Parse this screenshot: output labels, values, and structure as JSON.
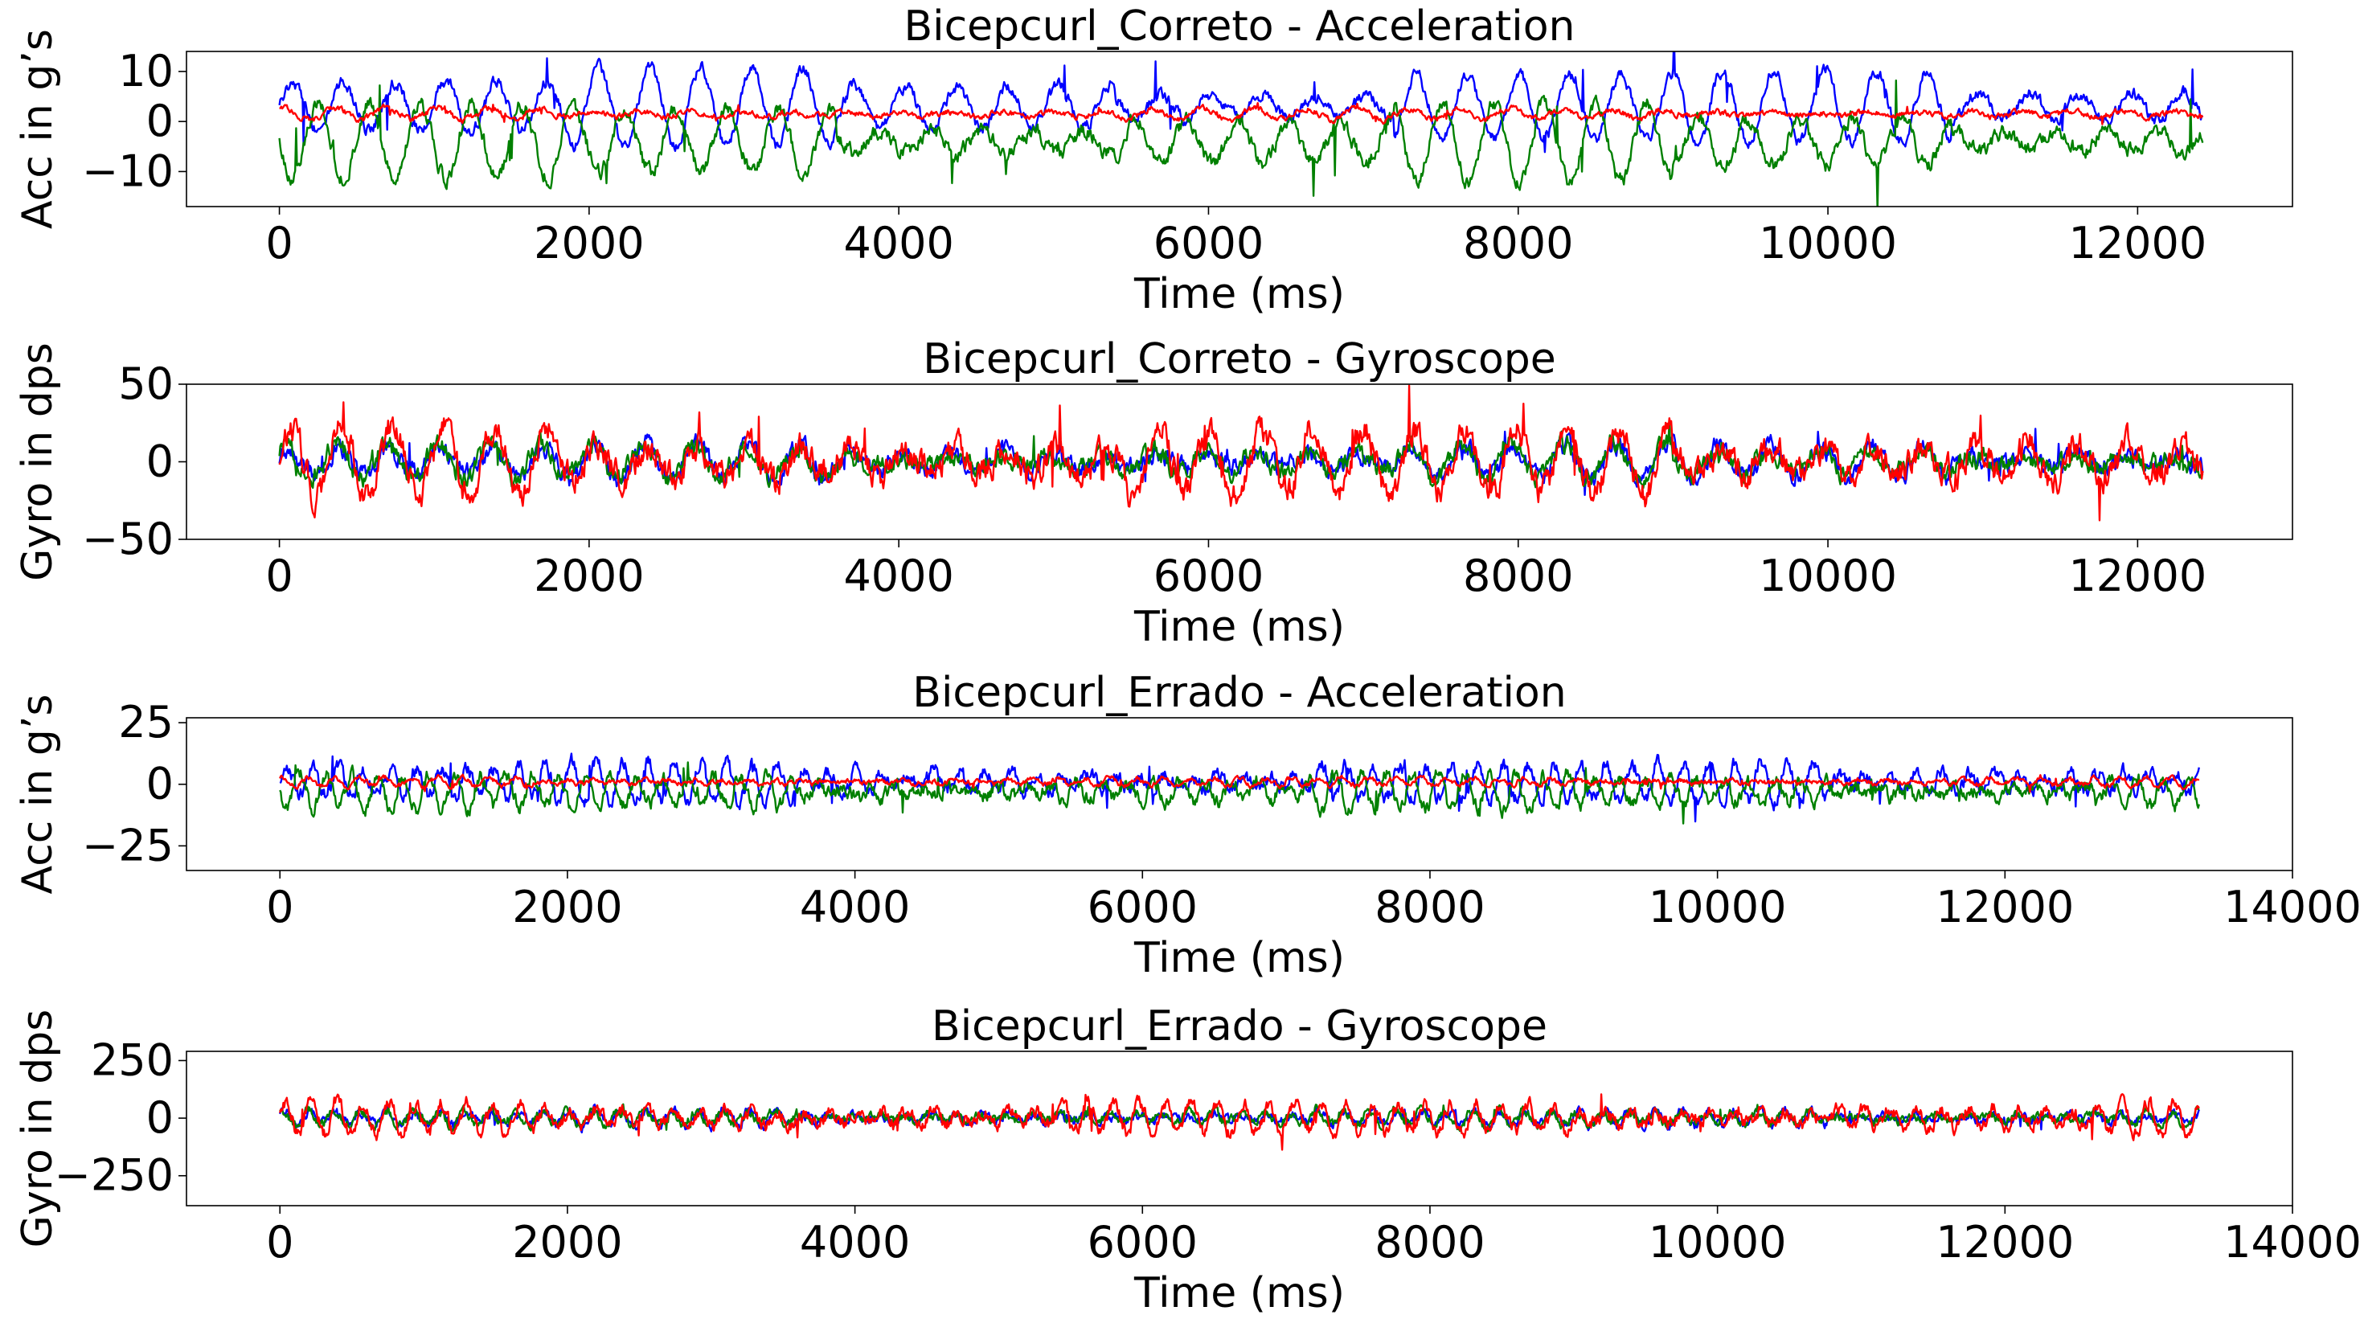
{
  "chart_data": [
    {
      "type": "line",
      "title": "Bicepcurl_Correto - Acceleration",
      "xlabel": "Time (ms)",
      "ylabel": "Acc in g’s",
      "xlim": [
        -600,
        13000
      ],
      "ylim": [
        -17,
        14
      ],
      "xticks": [
        0,
        2000,
        4000,
        6000,
        8000,
        10000,
        12000
      ],
      "yticks": [
        -10,
        0,
        10
      ],
      "ytick_labels": [
        "−10",
        "0",
        "10"
      ],
      "grid": false,
      "series": [
        {
          "color": "#0000ff",
          "x_end": 12420,
          "mean": 3,
          "amp": 6.5,
          "period": 330,
          "noise": 1.2,
          "phase": 0.0
        },
        {
          "color": "#008000",
          "x_end": 12420,
          "mean": -4,
          "amp": 6.5,
          "period": 330,
          "noise": 1.5,
          "phase": 3.1
        },
        {
          "color": "#ff0000",
          "x_end": 12420,
          "mean": 1.5,
          "amp": 1.0,
          "period": 330,
          "noise": 0.6,
          "phase": 1.0
        }
      ]
    },
    {
      "type": "line",
      "title": "Bicepcurl_Correto - Gyroscope",
      "xlabel": "Time (ms)",
      "ylabel": "Gyro in dps",
      "xlim": [
        -600,
        13000
      ],
      "ylim": [
        -50,
        50
      ],
      "xticks": [
        0,
        2000,
        4000,
        6000,
        8000,
        10000,
        12000
      ],
      "yticks": [
        -50,
        0,
        50
      ],
      "ytick_labels": [
        "−50",
        "0",
        "50"
      ],
      "grid": false,
      "series": [
        {
          "color": "#0000ff",
          "x_end": 12420,
          "mean": 0,
          "amp": 10,
          "period": 330,
          "noise": 6,
          "phase": 0.5
        },
        {
          "color": "#008000",
          "x_end": 12420,
          "mean": 0,
          "amp": 10,
          "period": 330,
          "noise": 6,
          "phase": 0.8
        },
        {
          "color": "#ff0000",
          "x_end": 12420,
          "mean": 0,
          "amp": 20,
          "period": 330,
          "noise": 9,
          "phase": 0.2
        }
      ]
    },
    {
      "type": "line",
      "title": "Bicepcurl_Errado - Acceleration",
      "xlabel": "Time (ms)",
      "ylabel": "Acc in g’s",
      "xlim": [
        -650,
        14000
      ],
      "ylim": [
        -35,
        27
      ],
      "xticks": [
        0,
        2000,
        4000,
        6000,
        8000,
        10000,
        12000,
        14000
      ],
      "yticks": [
        -25,
        0,
        25
      ],
      "ytick_labels": [
        "−25",
        "0",
        "25"
      ],
      "grid": false,
      "series": [
        {
          "color": "#0000ff",
          "x_end": 13350,
          "mean": 1,
          "amp": 7,
          "period": 180,
          "noise": 3,
          "phase": 0.0
        },
        {
          "color": "#008000",
          "x_end": 13350,
          "mean": -3,
          "amp": 6,
          "period": 180,
          "noise": 3,
          "phase": 3.0
        },
        {
          "color": "#ff0000",
          "x_end": 13350,
          "mean": 1,
          "amp": 1.5,
          "period": 180,
          "noise": 1,
          "phase": 1.0
        }
      ]
    },
    {
      "type": "line",
      "title": "Bicepcurl_Errado - Gyroscope",
      "xlabel": "Time (ms)",
      "ylabel": "Gyro in dps",
      "xlim": [
        -650,
        14000
      ],
      "ylim": [
        -380,
        290
      ],
      "xticks": [
        0,
        2000,
        4000,
        6000,
        8000,
        10000,
        12000,
        14000
      ],
      "yticks": [
        -250,
        0,
        250
      ],
      "ytick_labels": [
        "−250",
        "0",
        "250"
      ],
      "grid": false,
      "series": [
        {
          "color": "#0000ff",
          "x_end": 13350,
          "mean": 0,
          "amp": 30,
          "period": 180,
          "noise": 20,
          "phase": 0.4
        },
        {
          "color": "#008000",
          "x_end": 13350,
          "mean": 0,
          "amp": 30,
          "period": 180,
          "noise": 20,
          "phase": 0.9
        },
        {
          "color": "#ff0000",
          "x_end": 13350,
          "mean": 0,
          "amp": 60,
          "period": 180,
          "noise": 30,
          "phase": 0.1
        }
      ]
    }
  ]
}
